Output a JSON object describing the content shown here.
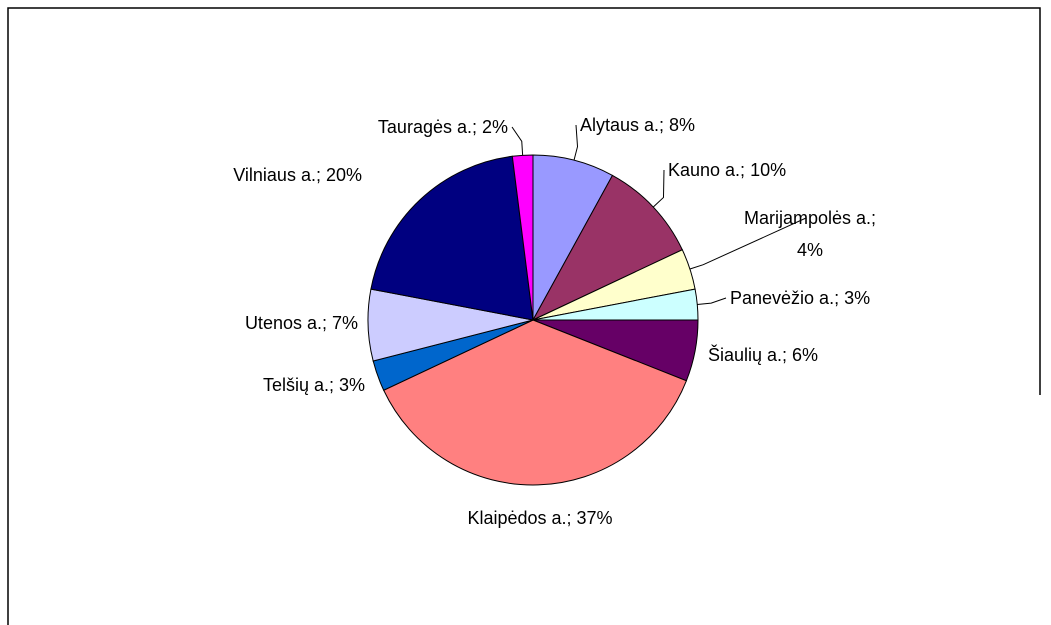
{
  "chart_data": {
    "type": "pie",
    "values": [
      8,
      10,
      4,
      3,
      6,
      37,
      3,
      7,
      20,
      2
    ],
    "value_labels": [
      "Alytaus a.; 8%",
      "Kauno a.; 10%",
      "Marijampolės a.; 4%",
      "Panevėžio a.; 3%",
      "Šiaulių a.; 6%",
      "Klaipėdos a.; 37%",
      "Telšių a.; 3%",
      "Utenos a.; 7%",
      "Vilniaus a.; 20%",
      "Tauragės a.; 2%"
    ],
    "colors": [
      "#9999ff",
      "#993366",
      "#ffffcc",
      "#ccffff",
      "#660066",
      "#ff8080",
      "#0066cc",
      "#ccccff",
      "#000080",
      "#ff00ff"
    ]
  }
}
